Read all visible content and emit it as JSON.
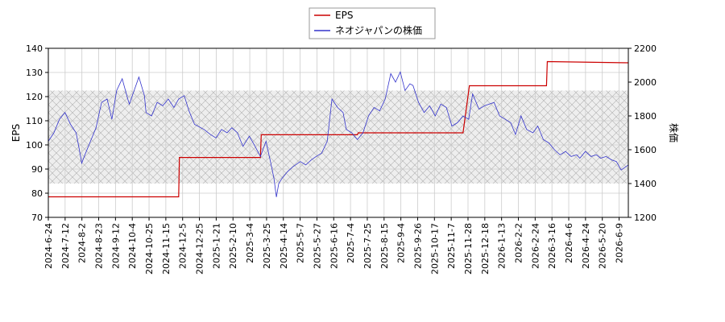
{
  "chart_data": {
    "type": "line",
    "legend": {
      "placement": "top-center",
      "entries": [
        "EPS",
        "ネオジャパンの株価"
      ]
    },
    "grid": true,
    "x_tick_labels": [
      "2024-6-24",
      "2024-7-12",
      "2024-8-2",
      "2024-8-23",
      "2024-9-12",
      "2024-10-4",
      "2024-10-25",
      "2024-11-15",
      "2024-12-5",
      "2024-12-25",
      "2025-1-21",
      "2025-2-10",
      "2025-3-4",
      "2025-3-25",
      "2025-4-14",
      "2025-5-7",
      "2025-5-27",
      "2025-6-16",
      "2025-7-4",
      "2025-7-25",
      "2025-8-15",
      "2025-9-4",
      "2025-9-26",
      "2025-10-17",
      "2025-11-7",
      "2025-11-28",
      "2025-12-18",
      "2026-1-13",
      "2026-2-2",
      "2026-2-24",
      "2026-3-16",
      "2026-4-6",
      "2026-4-24",
      "2026-5-20",
      "2026-6-9"
    ],
    "xlim": [
      "2024-06-24",
      "2026-06-24"
    ],
    "y_left": {
      "label": "EPS",
      "ylim": [
        70,
        140
      ],
      "ticks": [
        "70",
        "80",
        "90",
        "100",
        "110",
        "120",
        "130",
        "140"
      ]
    },
    "y_right": {
      "label": "株価",
      "ylim": [
        1200,
        2200
      ],
      "ticks": [
        "1200",
        "1400",
        "1600",
        "1800",
        "2000",
        "2200"
      ]
    },
    "shaded_band": {
      "axis": "right",
      "range": [
        1400,
        1950
      ]
    },
    "series": [
      {
        "name": "EPS",
        "axis": "left",
        "color": "#cc0000",
        "step": true,
        "points": [
          [
            "2024-06-24",
            78.5
          ],
          [
            "2024-12-05",
            78.5
          ],
          [
            "2024-12-06",
            94.8
          ],
          [
            "2025-03-18",
            94.8
          ],
          [
            "2025-03-19",
            104.2
          ],
          [
            "2025-07-18",
            104.2
          ],
          [
            "2025-07-19",
            105.0
          ],
          [
            "2025-11-28",
            105.0
          ],
          [
            "2025-12-06",
            124.5
          ],
          [
            "2026-03-13",
            124.5
          ],
          [
            "2026-03-14",
            134.5
          ],
          [
            "2026-06-24",
            134.0
          ]
        ]
      },
      {
        "name": "ネオジャパンの株価",
        "axis": "right",
        "color": "#3333cc",
        "points": [
          [
            "2024-06-24",
            1650
          ],
          [
            "2024-07-01",
            1700
          ],
          [
            "2024-07-08",
            1780
          ],
          [
            "2024-07-15",
            1820
          ],
          [
            "2024-07-22",
            1750
          ],
          [
            "2024-07-29",
            1700
          ],
          [
            "2024-08-02",
            1600
          ],
          [
            "2024-08-05",
            1520
          ],
          [
            "2024-08-09",
            1570
          ],
          [
            "2024-08-16",
            1650
          ],
          [
            "2024-08-23",
            1730
          ],
          [
            "2024-08-30",
            1880
          ],
          [
            "2024-09-06",
            1900
          ],
          [
            "2024-09-12",
            1780
          ],
          [
            "2024-09-18",
            1950
          ],
          [
            "2024-09-25",
            2020
          ],
          [
            "2024-10-02",
            1900
          ],
          [
            "2024-10-04",
            1870
          ],
          [
            "2024-10-10",
            1950
          ],
          [
            "2024-10-16",
            2030
          ],
          [
            "2024-10-23",
            1920
          ],
          [
            "2024-10-25",
            1820
          ],
          [
            "2024-11-01",
            1800
          ],
          [
            "2024-11-08",
            1880
          ],
          [
            "2024-11-15",
            1860
          ],
          [
            "2024-11-22",
            1900
          ],
          [
            "2024-11-29",
            1850
          ],
          [
            "2024-12-05",
            1900
          ],
          [
            "2024-12-12",
            1920
          ],
          [
            "2024-12-18",
            1830
          ],
          [
            "2024-12-25",
            1750
          ],
          [
            "2025-01-06",
            1720
          ],
          [
            "2025-01-14",
            1690
          ],
          [
            "2025-01-21",
            1670
          ],
          [
            "2025-01-28",
            1720
          ],
          [
            "2025-02-04",
            1700
          ],
          [
            "2025-02-10",
            1730
          ],
          [
            "2025-02-17",
            1700
          ],
          [
            "2025-02-24",
            1620
          ],
          [
            "2025-03-04",
            1680
          ],
          [
            "2025-03-10",
            1630
          ],
          [
            "2025-03-18",
            1560
          ],
          [
            "2025-03-25",
            1650
          ],
          [
            "2025-03-31",
            1520
          ],
          [
            "2025-04-04",
            1430
          ],
          [
            "2025-04-07",
            1320
          ],
          [
            "2025-04-10",
            1400
          ],
          [
            "2025-04-14",
            1430
          ],
          [
            "2025-04-21",
            1470
          ],
          [
            "2025-04-28",
            1500
          ],
          [
            "2025-05-07",
            1530
          ],
          [
            "2025-05-14",
            1510
          ],
          [
            "2025-05-21",
            1540
          ],
          [
            "2025-05-27",
            1560
          ],
          [
            "2025-06-03",
            1580
          ],
          [
            "2025-06-10",
            1650
          ],
          [
            "2025-06-16",
            1900
          ],
          [
            "2025-06-23",
            1850
          ],
          [
            "2025-06-30",
            1820
          ],
          [
            "2025-07-04",
            1720
          ],
          [
            "2025-07-11",
            1700
          ],
          [
            "2025-07-18",
            1660
          ],
          [
            "2025-07-25",
            1700
          ],
          [
            "2025-08-01",
            1800
          ],
          [
            "2025-08-08",
            1850
          ],
          [
            "2025-08-15",
            1830
          ],
          [
            "2025-08-22",
            1900
          ],
          [
            "2025-08-29",
            2050
          ],
          [
            "2025-09-04",
            2000
          ],
          [
            "2025-09-10",
            2060
          ],
          [
            "2025-09-16",
            1950
          ],
          [
            "2025-09-22",
            1990
          ],
          [
            "2025-09-26",
            1980
          ],
          [
            "2025-10-03",
            1880
          ],
          [
            "2025-10-10",
            1820
          ],
          [
            "2025-10-17",
            1860
          ],
          [
            "2025-10-24",
            1800
          ],
          [
            "2025-10-31",
            1870
          ],
          [
            "2025-11-07",
            1850
          ],
          [
            "2025-11-14",
            1740
          ],
          [
            "2025-11-21",
            1760
          ],
          [
            "2025-11-28",
            1800
          ],
          [
            "2025-12-05",
            1780
          ],
          [
            "2025-12-10",
            1930
          ],
          [
            "2025-12-18",
            1840
          ],
          [
            "2025-12-25",
            1860
          ],
          [
            "2026-01-06",
            1880
          ],
          [
            "2026-01-13",
            1800
          ],
          [
            "2026-01-20",
            1780
          ],
          [
            "2026-01-27",
            1760
          ],
          [
            "2026-02-02",
            1690
          ],
          [
            "2026-02-09",
            1800
          ],
          [
            "2026-02-16",
            1720
          ],
          [
            "2026-02-24",
            1700
          ],
          [
            "2026-03-02",
            1740
          ],
          [
            "2026-03-09",
            1660
          ],
          [
            "2026-03-16",
            1640
          ],
          [
            "2026-03-23",
            1600
          ],
          [
            "2026-03-30",
            1570
          ],
          [
            "2026-04-06",
            1590
          ],
          [
            "2026-04-13",
            1560
          ],
          [
            "2026-04-20",
            1570
          ],
          [
            "2026-04-24",
            1550
          ],
          [
            "2026-05-01",
            1590
          ],
          [
            "2026-05-08",
            1560
          ],
          [
            "2026-05-15",
            1570
          ],
          [
            "2026-05-20",
            1550
          ],
          [
            "2026-05-27",
            1560
          ],
          [
            "2026-06-03",
            1540
          ],
          [
            "2026-06-09",
            1530
          ],
          [
            "2026-06-15",
            1480
          ],
          [
            "2026-06-24",
            1510
          ]
        ]
      }
    ]
  }
}
